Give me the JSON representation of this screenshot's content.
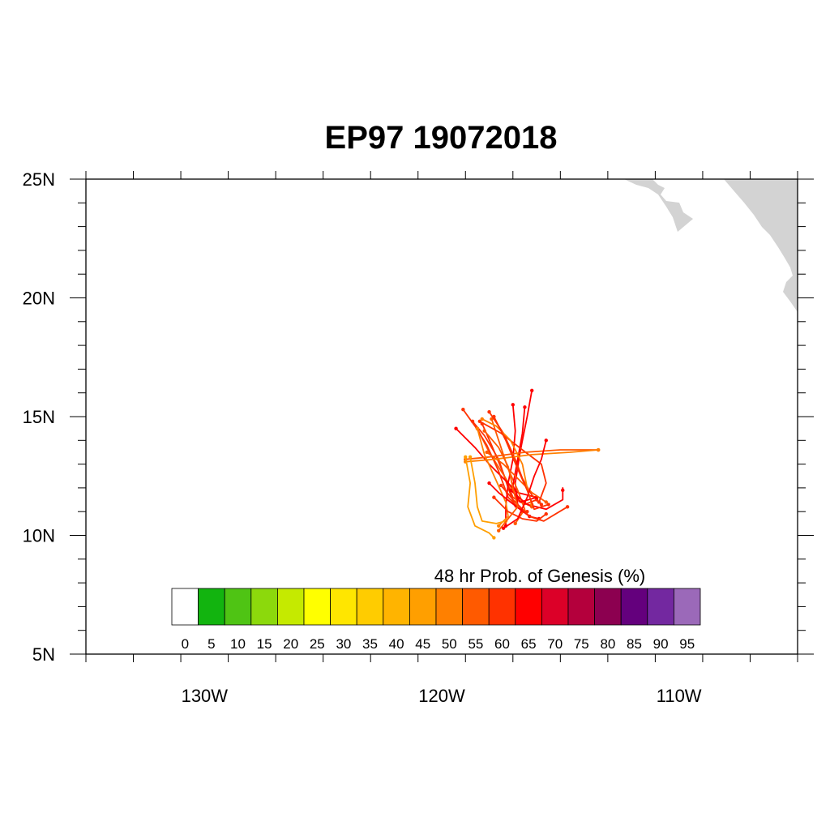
{
  "title": "EP97 19072018",
  "map": {
    "lon_range": [
      -135,
      -105
    ],
    "lat_range": [
      5,
      25
    ],
    "lon_ticks": [
      {
        "value": -130,
        "label": "130W"
      },
      {
        "value": -120,
        "label": "120W"
      },
      {
        "value": -110,
        "label": "110W"
      }
    ],
    "lat_ticks": [
      {
        "value": 25,
        "label": "25N"
      },
      {
        "value": 20,
        "label": "20N"
      },
      {
        "value": 15,
        "label": "15N"
      },
      {
        "value": 10,
        "label": "10N"
      },
      {
        "value": 5,
        "label": "5N"
      }
    ],
    "land_color": "#d3d3d3"
  },
  "colorbar": {
    "title": "48 hr Prob. of Genesis (%)",
    "labels": [
      "0",
      "5",
      "10",
      "15",
      "20",
      "25",
      "30",
      "35",
      "40",
      "45",
      "50",
      "55",
      "60",
      "65",
      "70",
      "75",
      "80",
      "85",
      "90",
      "95"
    ],
    "colors": [
      "#ffffff",
      "#12b40f",
      "#4fc414",
      "#8cd90c",
      "#c5ea00",
      "#ffff00",
      "#ffe600",
      "#ffcc00",
      "#ffb400",
      "#ff9f00",
      "#ff8000",
      "#ff5a00",
      "#ff3200",
      "#ff0000",
      "#dc0028",
      "#b4003c",
      "#8c0050",
      "#64007d",
      "#7328a0",
      "#9b69b9"
    ]
  },
  "tracks": [
    {
      "color": "#ff3200",
      "points": [
        [
          -118.7,
          14.8
        ],
        [
          -118.2,
          14.2
        ],
        [
          -117.6,
          13.2
        ],
        [
          -117.2,
          12.0
        ],
        [
          -116.9,
          11.2
        ],
        [
          -116.4,
          11.0
        ]
      ]
    },
    {
      "color": "#ff3200",
      "points": [
        [
          -118.3,
          14.7
        ],
        [
          -117.9,
          13.8
        ],
        [
          -117.4,
          12.6
        ],
        [
          -117.0,
          11.6
        ],
        [
          -116.5,
          11.3
        ],
        [
          -116.0,
          11.5
        ]
      ]
    },
    {
      "color": "#ff5a00",
      "points": [
        [
          -118.5,
          14.5
        ],
        [
          -118.0,
          13.5
        ],
        [
          -117.3,
          12.4
        ],
        [
          -116.8,
          11.5
        ],
        [
          -116.2,
          11.2
        ]
      ]
    },
    {
      "color": "#ff0000",
      "points": [
        [
          -116.2,
          16.1
        ],
        [
          -116.4,
          15.0
        ],
        [
          -116.7,
          13.5
        ],
        [
          -116.9,
          12.2
        ],
        [
          -116.8,
          11.3
        ],
        [
          -116.3,
          10.8
        ]
      ]
    },
    {
      "color": "#ff0000",
      "points": [
        [
          -119.4,
          14.5
        ],
        [
          -118.6,
          13.7
        ],
        [
          -118.0,
          13.0
        ],
        [
          -117.4,
          12.4
        ],
        [
          -116.8,
          11.8
        ],
        [
          -116.0,
          11.6
        ]
      ]
    },
    {
      "color": "#ff3200",
      "points": [
        [
          -119.1,
          15.3
        ],
        [
          -118.6,
          14.6
        ],
        [
          -118.1,
          13.8
        ],
        [
          -117.6,
          12.7
        ],
        [
          -117.2,
          11.6
        ],
        [
          -116.6,
          11.0
        ]
      ]
    },
    {
      "color": "#ff0000",
      "points": [
        [
          -117.0,
          15.5
        ],
        [
          -116.9,
          14.4
        ],
        [
          -117.0,
          13.2
        ],
        [
          -117.2,
          12.2
        ],
        [
          -117.3,
          11.2
        ],
        [
          -117.3,
          10.4
        ]
      ]
    },
    {
      "color": "#ff5a00",
      "points": [
        [
          -117.9,
          14.9
        ],
        [
          -117.6,
          14.0
        ],
        [
          -117.2,
          12.8
        ],
        [
          -116.8,
          11.9
        ],
        [
          -116.5,
          11.1
        ],
        [
          -116.9,
          10.5
        ]
      ]
    },
    {
      "color": "#ff3200",
      "points": [
        [
          -118.0,
          15.2
        ],
        [
          -117.4,
          14.3
        ],
        [
          -116.9,
          13.2
        ],
        [
          -116.6,
          12.4
        ],
        [
          -116.2,
          11.7
        ],
        [
          -115.8,
          11.3
        ]
      ]
    },
    {
      "color": "#ff0000",
      "points": [
        [
          -116.5,
          15.4
        ],
        [
          -116.6,
          14.3
        ],
        [
          -116.8,
          13.2
        ],
        [
          -117.0,
          12.1
        ],
        [
          -116.7,
          11.4
        ],
        [
          -116.0,
          11.6
        ]
      ]
    },
    {
      "color": "#ff5a00",
      "points": [
        [
          -118.1,
          13.5
        ],
        [
          -117.4,
          13.0
        ],
        [
          -116.8,
          12.4
        ],
        [
          -116.2,
          11.8
        ],
        [
          -115.6,
          11.4
        ]
      ]
    },
    {
      "color": "#ff3200",
      "points": [
        [
          -118.4,
          14.8
        ],
        [
          -117.5,
          14.3
        ],
        [
          -116.6,
          13.6
        ],
        [
          -115.8,
          13.0
        ],
        [
          -115.6,
          12.2
        ],
        [
          -115.9,
          11.4
        ]
      ]
    },
    {
      "color": "#ff5a00",
      "points": [
        [
          -119.0,
          13.2
        ],
        [
          -118.0,
          13.3
        ],
        [
          -116.5,
          13.5
        ],
        [
          -115.0,
          13.6
        ],
        [
          -113.4,
          13.6
        ]
      ]
    },
    {
      "color": "#ff8000",
      "points": [
        [
          -119.0,
          13.1
        ],
        [
          -117.8,
          13.2
        ],
        [
          -116.2,
          13.4
        ],
        [
          -114.6,
          13.5
        ],
        [
          -113.4,
          13.6
        ]
      ]
    },
    {
      "color": "#ff8000",
      "points": [
        [
          -118.5,
          14.5
        ],
        [
          -118.2,
          13.4
        ],
        [
          -117.7,
          12.3
        ],
        [
          -117.3,
          11.4
        ],
        [
          -117.2,
          10.8
        ],
        [
          -117.6,
          10.4
        ]
      ]
    },
    {
      "color": "#ff9f00",
      "points": [
        [
          -118.8,
          13.3
        ],
        [
          -118.6,
          12.2
        ],
        [
          -118.5,
          11.2
        ],
        [
          -118.3,
          10.6
        ],
        [
          -117.7,
          10.5
        ],
        [
          -117.3,
          10.6
        ]
      ]
    },
    {
      "color": "#ff9f00",
      "points": [
        [
          -119.0,
          13.3
        ],
        [
          -118.8,
          12.2
        ],
        [
          -118.9,
          11.2
        ],
        [
          -118.6,
          10.4
        ],
        [
          -118.0,
          10.1
        ],
        [
          -117.8,
          9.9
        ]
      ]
    },
    {
      "color": "#ff0000",
      "points": [
        [
          -118.0,
          12.2
        ],
        [
          -117.6,
          11.8
        ],
        [
          -117.1,
          11.4
        ],
        [
          -116.7,
          11.1
        ],
        [
          -116.3,
          10.8
        ],
        [
          -115.9,
          10.7
        ]
      ]
    },
    {
      "color": "#ff3200",
      "points": [
        [
          -117.5,
          12.1
        ],
        [
          -116.9,
          11.4
        ],
        [
          -116.3,
          10.8
        ],
        [
          -115.7,
          10.6
        ],
        [
          -114.7,
          11.2
        ]
      ]
    },
    {
      "color": "#ff3200",
      "points": [
        [
          -117.8,
          11.6
        ],
        [
          -117.2,
          11.0
        ],
        [
          -116.6,
          10.7
        ],
        [
          -116.0,
          10.6
        ],
        [
          -115.6,
          10.9
        ]
      ]
    },
    {
      "color": "#ff0000",
      "points": [
        [
          -117.1,
          11.9
        ],
        [
          -116.4,
          11.3
        ],
        [
          -115.6,
          11.1
        ],
        [
          -114.9,
          11.5
        ],
        [
          -114.9,
          12.0
        ],
        [
          -114.9,
          11.9
        ]
      ]
    },
    {
      "color": "#ff5a00",
      "points": [
        [
          -118.2,
          14.4
        ],
        [
          -117.6,
          13.7
        ],
        [
          -117.2,
          12.9
        ],
        [
          -117.0,
          12.0
        ],
        [
          -116.8,
          11.2
        ],
        [
          -117.6,
          10.2
        ]
      ]
    },
    {
      "color": "#ff8000",
      "points": [
        [
          -118.3,
          14.9
        ],
        [
          -117.7,
          14.6
        ],
        [
          -117.1,
          14.0
        ],
        [
          -116.6,
          13.0
        ],
        [
          -116.4,
          12.0
        ],
        [
          -116.2,
          11.3
        ]
      ]
    },
    {
      "color": "#ff0000",
      "points": [
        [
          -115.6,
          14.0
        ],
        [
          -115.8,
          13.2
        ],
        [
          -116.1,
          12.5
        ],
        [
          -116.4,
          11.6
        ],
        [
          -116.8,
          10.7
        ],
        [
          -117.4,
          10.3
        ]
      ]
    },
    {
      "color": "#ff3200",
      "points": [
        [
          -117.8,
          15.0
        ],
        [
          -117.3,
          14.0
        ],
        [
          -116.8,
          12.8
        ],
        [
          -116.4,
          11.9
        ],
        [
          -116.1,
          11.1
        ],
        [
          -115.5,
          11.3
        ]
      ]
    }
  ]
}
